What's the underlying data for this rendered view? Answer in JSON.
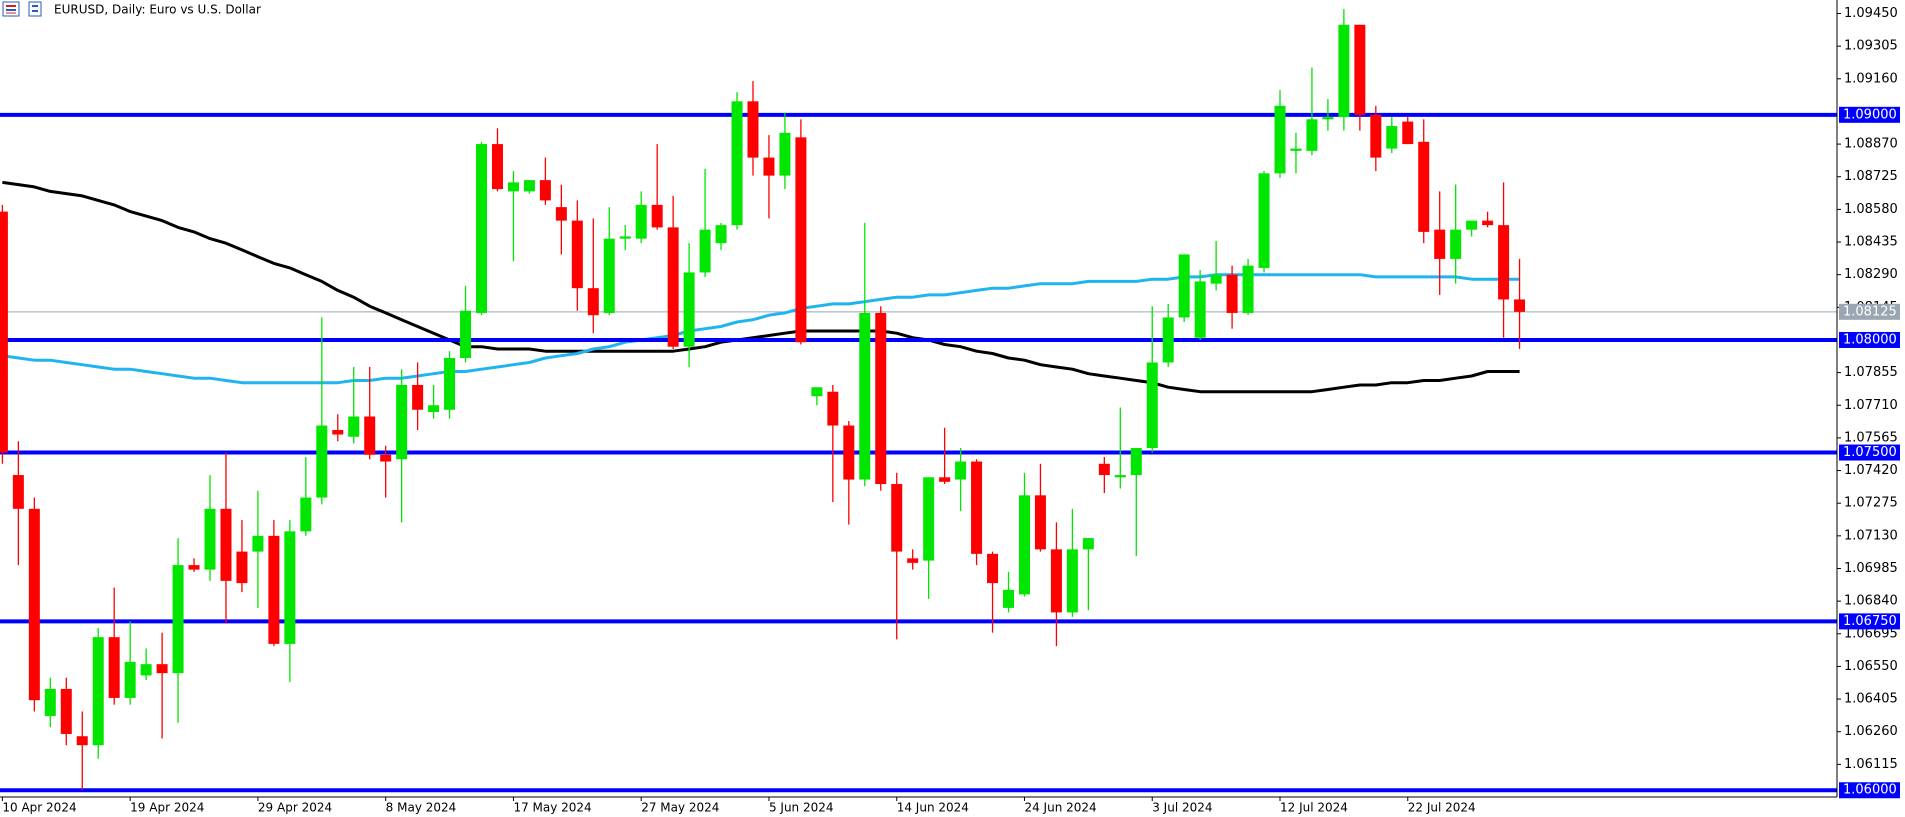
{
  "chart_data": {
    "type": "candlestick",
    "title": "EURUSD, Daily:  Euro vs U.S. Dollar",
    "categories": [
      "10 Apr 2024",
      null,
      null,
      null,
      null,
      null,
      null,
      null,
      "19 Apr 2024",
      null,
      null,
      null,
      null,
      null,
      null,
      null,
      "29 Apr 2024",
      null,
      null,
      null,
      null,
      null,
      null,
      null,
      "8 May 2024",
      null,
      null,
      null,
      null,
      null,
      null,
      null,
      "17 May 2024",
      null,
      null,
      null,
      null,
      null,
      null,
      null,
      "27 May 2024",
      null,
      null,
      null,
      null,
      null,
      null,
      null,
      "5 Jun 2024",
      null,
      null,
      null,
      null,
      null,
      null,
      null,
      "14 Jun 2024",
      null,
      null,
      null,
      null,
      null,
      null,
      null,
      "24 Jun 2024",
      null,
      null,
      null,
      null,
      null,
      null,
      null,
      "3 Jul 2024",
      null,
      null,
      null,
      null,
      null,
      null,
      null,
      "12 Jul 2024",
      null,
      null,
      null,
      null,
      null,
      null,
      null,
      "22 Jul 2024",
      null,
      null,
      null,
      null,
      null,
      null,
      null
    ],
    "open": [
      1.0857,
      1.074,
      1.0725,
      1.0633,
      1.0645,
      1.0624,
      1.062,
      1.0668,
      1.0641,
      1.0651,
      1.0656,
      1.0652,
      1.07,
      1.0698,
      1.0725,
      1.0706,
      1.0706,
      1.0713,
      1.0665,
      1.0715,
      1.073,
      1.076,
      1.0757,
      1.0766,
      1.0749,
      1.0747,
      1.078,
      1.0768,
      1.0769,
      1.0792,
      1.0812,
      1.0887,
      1.0866,
      1.0866,
      1.0871,
      1.0859,
      1.0853,
      1.0823,
      1.0812,
      1.0845,
      1.0845,
      1.086,
      1.085,
      1.0797,
      1.083,
      1.0843,
      1.0851,
      1.0906,
      1.0881,
      1.0873,
      1.089,
      1.0775,
      1.0777,
      1.0762,
      1.0738,
      1.0812,
      1.0736,
      1.0703,
      1.0702,
      1.0739,
      1.0738,
      1.0746,
      1.0705,
      1.0681,
      1.0687,
      1.0731,
      1.0707,
      1.0679,
      1.0707,
      1.0745,
      1.0739,
      1.074,
      1.0752,
      1.079,
      1.081,
      1.0801,
      1.0825,
      1.0829,
      1.0812,
      1.0832,
      1.0874,
      1.0884,
      1.0884,
      1.0898,
      1.0899,
      1.094,
      1.09,
      1.0885,
      1.0897,
      1.0888,
      1.0849,
      1.0836,
      1.0849,
      1.0853,
      1.0851,
      1.0818
    ],
    "high": [
      1.086,
      1.0755,
      1.073,
      1.065,
      1.065,
      1.0635,
      1.0672,
      1.069,
      1.0675,
      1.0663,
      1.067,
      1.0712,
      1.0703,
      1.074,
      1.075,
      1.072,
      1.0733,
      1.072,
      1.072,
      1.0748,
      1.081,
      1.0767,
      1.0788,
      1.0788,
      1.0753,
      1.0787,
      1.079,
      1.078,
      1.0795,
      1.0824,
      1.0888,
      1.0894,
      1.0875,
      1.0871,
      1.0881,
      1.0869,
      1.0862,
      1.0854,
      1.0859,
      1.0851,
      1.0866,
      1.0887,
      1.0864,
      1.0843,
      1.0876,
      1.0852,
      1.091,
      1.0915,
      1.0891,
      1.0901,
      1.0898,
      1.0779,
      1.078,
      1.0764,
      1.0852,
      1.0815,
      1.0741,
      1.0707,
      1.0739,
      1.0761,
      1.0752,
      1.0747,
      1.0706,
      1.0697,
      1.0741,
      1.0745,
      1.0719,
      1.0725,
      1.0712,
      1.0748,
      1.077,
      1.0752,
      1.0815,
      1.0816,
      1.0838,
      1.0831,
      1.0844,
      1.0833,
      1.0836,
      1.0875,
      1.0911,
      1.0892,
      1.0921,
      1.0907,
      1.0947,
      1.094,
      1.0904,
      1.0899,
      1.0899,
      1.0898,
      1.0866,
      1.0869,
      1.085,
      1.0857,
      1.087,
      1.0836
    ],
    "low": [
      1.0745,
      1.07,
      1.0635,
      1.0628,
      1.062,
      1.06,
      1.0614,
      1.0638,
      1.0638,
      1.0649,
      1.0623,
      1.063,
      1.0697,
      1.0693,
      1.0674,
      1.0688,
      1.0681,
      1.0664,
      1.0648,
      1.0713,
      1.0727,
      1.0755,
      1.0754,
      1.0747,
      1.073,
      1.0719,
      1.076,
      1.0765,
      1.0765,
      1.079,
      1.0811,
      1.0866,
      1.0835,
      1.0865,
      1.086,
      1.0838,
      1.0813,
      1.0803,
      1.0811,
      1.084,
      1.0843,
      1.0849,
      1.0796,
      1.0788,
      1.0828,
      1.084,
      1.0849,
      1.0873,
      1.0854,
      1.0867,
      1.0798,
      1.0771,
      1.0728,
      1.0718,
      1.0735,
      1.0733,
      1.0667,
      1.0698,
      1.0685,
      1.0736,
      1.0724,
      1.07,
      1.067,
      1.0679,
      1.0686,
      1.0706,
      1.0664,
      1.0677,
      1.068,
      1.0732,
      1.0734,
      1.0704,
      1.075,
      1.0788,
      1.0808,
      1.08,
      1.0822,
      1.0805,
      1.0811,
      1.083,
      1.0872,
      1.0874,
      1.0882,
      1.0893,
      1.0893,
      1.0893,
      1.0875,
      1.0883,
      1.0887,
      1.0843,
      1.082,
      1.0825,
      1.0846,
      1.085,
      1.0801,
      1.0796
    ],
    "close": [
      1.075,
      1.0725,
      1.064,
      1.0645,
      1.0625,
      1.062,
      1.0668,
      1.0641,
      1.0657,
      1.0656,
      1.0652,
      1.07,
      1.0698,
      1.0725,
      1.0693,
      1.0692,
      1.0713,
      1.0665,
      1.0715,
      1.073,
      1.0762,
      1.0758,
      1.0766,
      1.0749,
      1.0746,
      1.078,
      1.0769,
      1.0771,
      1.0792,
      1.0813,
      1.0887,
      1.0867,
      1.087,
      1.0871,
      1.0862,
      1.0853,
      1.0823,
      1.0811,
      1.0845,
      1.0846,
      1.086,
      1.085,
      1.0797,
      1.083,
      1.0849,
      1.0851,
      1.0906,
      1.0881,
      1.0873,
      1.0892,
      1.0799,
      1.0779,
      1.0762,
      1.0738,
      1.0812,
      1.0736,
      1.0706,
      1.0701,
      1.0739,
      1.0737,
      1.0746,
      1.0705,
      1.0692,
      1.0689,
      1.0731,
      1.0707,
      1.0679,
      1.0707,
      1.0712,
      1.074,
      1.074,
      1.0752,
      1.079,
      1.081,
      1.0838,
      1.0826,
      1.0829,
      1.0812,
      1.0833,
      1.0874,
      1.0904,
      1.0885,
      1.0898,
      1.0899,
      1.094,
      1.09,
      1.0881,
      1.0895,
      1.0887,
      1.0848,
      1.0836,
      1.0849,
      1.0853,
      1.0851,
      1.0818,
      1.08125
    ],
    "up_color": "#00e600",
    "down_color": "#ff0000",
    "lines": [
      {
        "color": "#000000",
        "values": [
          1.087,
          1.0869,
          1.0868,
          1.0866,
          1.0865,
          1.0864,
          1.0862,
          1.086,
          1.0857,
          1.0855,
          1.0853,
          1.085,
          1.0848,
          1.0845,
          1.0843,
          1.084,
          1.0837,
          1.0834,
          1.0832,
          1.0829,
          1.0826,
          1.0822,
          1.0819,
          1.0815,
          1.0812,
          1.0809,
          1.0806,
          1.0803,
          1.08,
          1.0797,
          1.0797,
          1.0796,
          1.0796,
          1.0796,
          1.0795,
          1.0795,
          1.0795,
          1.0795,
          1.0795,
          1.0795,
          1.0795,
          1.0795,
          1.0795,
          1.0796,
          1.0797,
          1.0799,
          1.08,
          1.0801,
          1.0802,
          1.0803,
          1.0804,
          1.0804,
          1.0804,
          1.0804,
          1.0804,
          1.0804,
          1.0803,
          1.0801,
          1.08,
          1.0798,
          1.0797,
          1.0795,
          1.0794,
          1.0792,
          1.0791,
          1.0789,
          1.0788,
          1.0787,
          1.0785,
          1.0784,
          1.0783,
          1.0782,
          1.0781,
          1.0779,
          1.0778,
          1.0777,
          1.0777,
          1.0777,
          1.0777,
          1.0777,
          1.0777,
          1.0777,
          1.0777,
          1.0778,
          1.0779,
          1.078,
          1.078,
          1.0781,
          1.0781,
          1.0782,
          1.0782,
          1.0783,
          1.0784,
          1.0786,
          1.0786,
          1.0786
        ]
      },
      {
        "color": "#1fb4f0",
        "values": [
          1.0793,
          1.0792,
          1.0791,
          1.0791,
          1.079,
          1.0789,
          1.0788,
          1.0787,
          1.0787,
          1.0786,
          1.0785,
          1.0784,
          1.0783,
          1.0783,
          1.0782,
          1.0781,
          1.0781,
          1.0781,
          1.0781,
          1.0781,
          1.0781,
          1.0781,
          1.0782,
          1.0782,
          1.0783,
          1.0783,
          1.0784,
          1.0785,
          1.0786,
          1.0786,
          1.0787,
          1.0788,
          1.0789,
          1.079,
          1.0792,
          1.0793,
          1.0794,
          1.0796,
          1.0797,
          1.0799,
          1.08,
          1.0801,
          1.0802,
          1.0804,
          1.0805,
          1.0806,
          1.0808,
          1.0809,
          1.0811,
          1.0812,
          1.0814,
          1.0815,
          1.0816,
          1.0816,
          1.0817,
          1.0818,
          1.0819,
          1.0819,
          1.082,
          1.082,
          1.0821,
          1.0822,
          1.0823,
          1.0823,
          1.0824,
          1.0825,
          1.0825,
          1.0825,
          1.0826,
          1.0826,
          1.0826,
          1.0826,
          1.0827,
          1.0827,
          1.0828,
          1.0828,
          1.0829,
          1.0829,
          1.0829,
          1.0829,
          1.0829,
          1.0829,
          1.0829,
          1.0829,
          1.0829,
          1.0829,
          1.0828,
          1.0828,
          1.0828,
          1.0828,
          1.0828,
          1.0828,
          1.0827,
          1.0827,
          1.0827,
          1.0827
        ]
      }
    ],
    "levels": [
      {
        "value": 1.09,
        "label": "1.09000"
      },
      {
        "value": 1.08,
        "label": "1.08000"
      },
      {
        "value": 1.075,
        "label": "1.07500"
      },
      {
        "value": 1.0675,
        "label": "1.06750"
      },
      {
        "value": 1.06,
        "label": "1.06000"
      }
    ],
    "level_color": "#0000ff",
    "last_price": {
      "value": 1.08125,
      "label": "1.08125"
    },
    "last_price_color": "#9aa6b2",
    "ylim": [
      1.0597,
      1.0951
    ],
    "yticks": [
      {
        "value": 1.0945,
        "label": "1.09450"
      },
      {
        "value": 1.09305,
        "label": "1.09305"
      },
      {
        "value": 1.0916,
        "label": "1.09160"
      },
      {
        "value": 1.0887,
        "label": "1.08870"
      },
      {
        "value": 1.08725,
        "label": "1.08725"
      },
      {
        "value": 1.0858,
        "label": "1.08580"
      },
      {
        "value": 1.08435,
        "label": "1.08435"
      },
      {
        "value": 1.0829,
        "label": "1.08290"
      },
      {
        "value": 1.08145,
        "label": "1.08145"
      },
      {
        "value": 1.07855,
        "label": "1.07855"
      },
      {
        "value": 1.0771,
        "label": "1.07710"
      },
      {
        "value": 1.07565,
        "label": "1.07565"
      },
      {
        "value": 1.0742,
        "label": "1.07420"
      },
      {
        "value": 1.07275,
        "label": "1.07275"
      },
      {
        "value": 1.0713,
        "label": "1.07130"
      },
      {
        "value": 1.06985,
        "label": "1.06985"
      },
      {
        "value": 1.0684,
        "label": "1.06840"
      },
      {
        "value": 1.06695,
        "label": "1.06695"
      },
      {
        "value": 1.0655,
        "label": "1.06550"
      },
      {
        "value": 1.06405,
        "label": "1.06405"
      },
      {
        "value": 1.0626,
        "label": "1.06260"
      },
      {
        "value": 1.06115,
        "label": "1.06115"
      }
    ]
  }
}
